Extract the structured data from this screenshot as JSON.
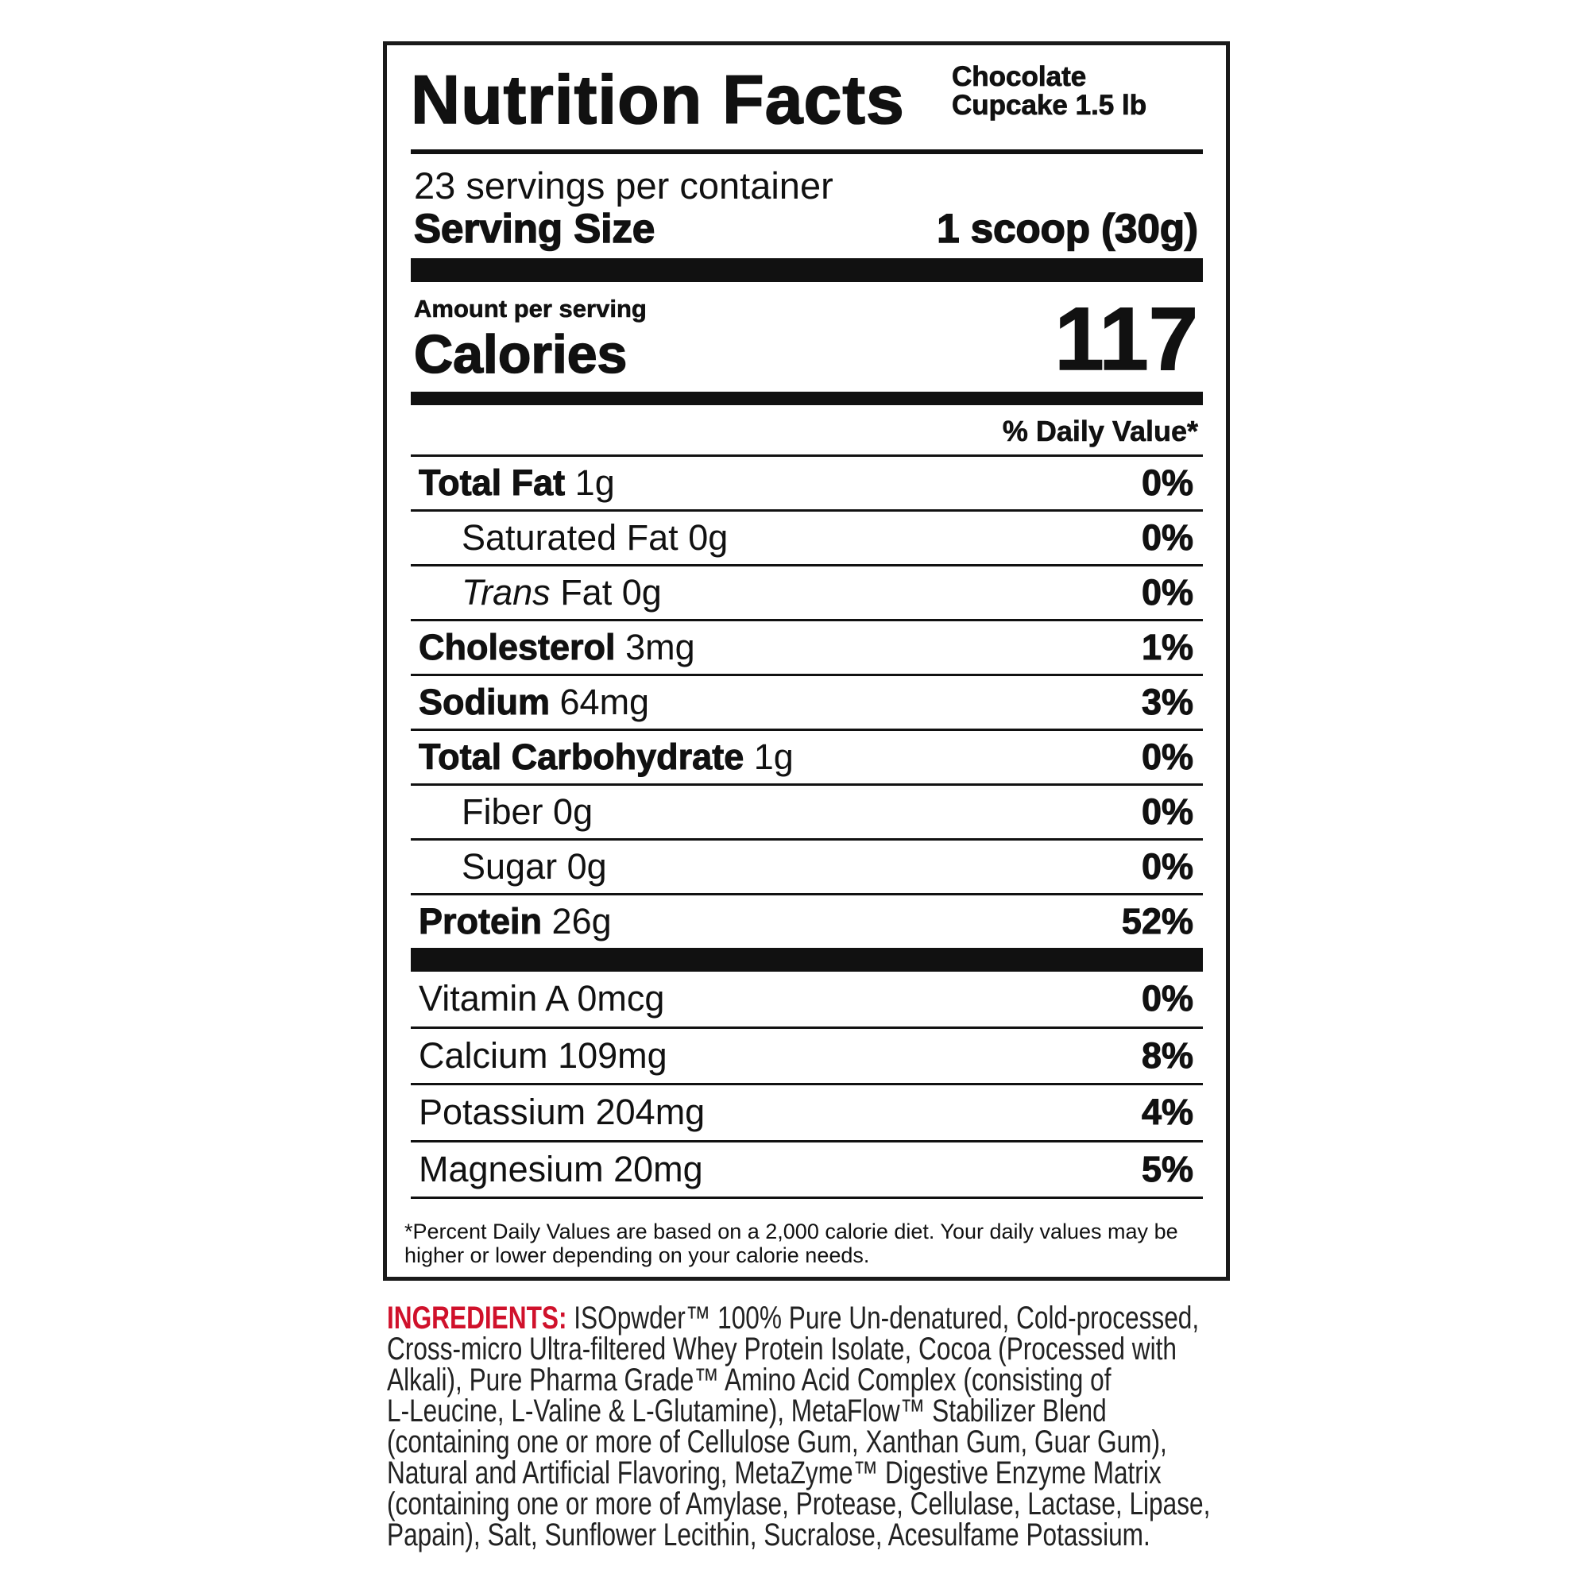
{
  "header": {
    "title": "Nutrition Facts",
    "product_line1": "Chocolate",
    "product_line2": "Cupcake 1.5 lb"
  },
  "servings": {
    "per_container": "23 servings per container",
    "size_label": "Serving Size",
    "size_value": "1 scoop (30g)"
  },
  "calories": {
    "amount_label": "Amount per serving",
    "label": "Calories",
    "value": "117"
  },
  "daily_value_header": "% Daily Value*",
  "nutrients": [
    {
      "name": "Total Fat",
      "amount": "1g",
      "dv": "0%",
      "bold": true,
      "indent": false
    },
    {
      "name": "Saturated Fat",
      "amount": "0g",
      "dv": "0%",
      "bold": false,
      "indent": true
    },
    {
      "italic_prefix": "Trans",
      "name": " Fat",
      "amount": "0g",
      "dv": "0%",
      "bold": false,
      "indent": true
    },
    {
      "name": "Cholesterol",
      "amount": "3mg",
      "dv": "1%",
      "bold": true,
      "indent": false
    },
    {
      "name": "Sodium",
      "amount": "64mg",
      "dv": "3%",
      "bold": true,
      "indent": false
    },
    {
      "name": "Total Carbohydrate",
      "amount": "1g",
      "dv": "0%",
      "bold": true,
      "indent": false
    },
    {
      "name": "Fiber",
      "amount": "0g",
      "dv": "0%",
      "bold": false,
      "indent": true
    },
    {
      "name": "Sugar",
      "amount": "0g",
      "dv": "0%",
      "bold": false,
      "indent": true
    },
    {
      "name": "Protein",
      "amount": "26g",
      "dv": "52%",
      "bold": true,
      "indent": false
    }
  ],
  "vitamins": [
    {
      "name": "Vitamin A",
      "amount": "0mcg",
      "dv": "0%"
    },
    {
      "name": "Calcium",
      "amount": "109mg",
      "dv": "8%"
    },
    {
      "name": "Potassium",
      "amount": "204mg",
      "dv": "4%"
    },
    {
      "name": "Magnesium",
      "amount": "20mg",
      "dv": "5%"
    }
  ],
  "footnote": "*Percent Daily Values are based on a 2,000 calorie diet. Your daily values may be higher or lower depending on your calorie needs.",
  "ingredients": {
    "label": "INGREDIENTS:",
    "label_color": "#d0112b",
    "lines": [
      " ISOpwder™ 100% Pure Un-denatured, Cold-processed,",
      "Cross-micro Ultra-filtered Whey Protein Isolate, Cocoa (Processed with",
      "Alkali), Pure Pharma Grade™ Amino Acid Complex (consisting of",
      "L-Leucine, L-Valine & L-Glutamine), MetaFlow™ Stabilizer Blend",
      "(containing one or more of Cellulose Gum, Xanthan Gum, Guar Gum),",
      "Natural and Artificial Flavoring, MetaZyme™ Digestive Enzyme Matrix",
      "(containing one or more of Amylase, Protease, Cellulase, Lactase, Lipase,",
      "Papain), Salt, Sunflower Lecithin, Sucralose, Acesulfame Potassium."
    ]
  }
}
